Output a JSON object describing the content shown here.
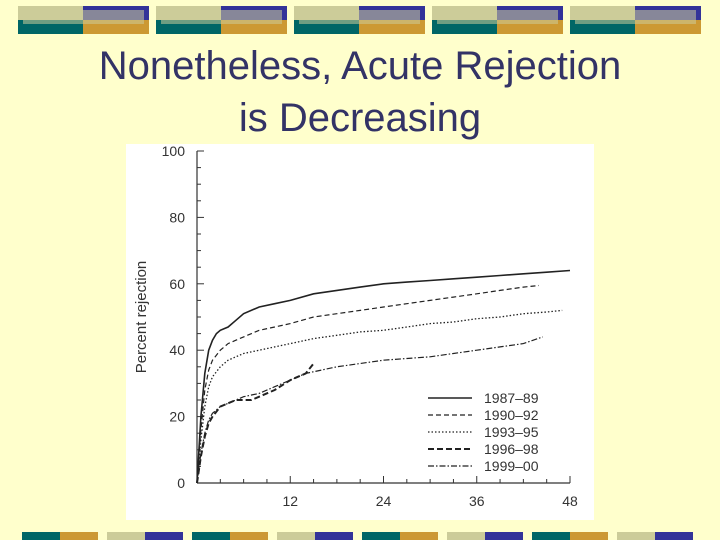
{
  "slide": {
    "title_line1": "Nonetheless, Acute Rejection",
    "title_line2": "is Decreasing"
  },
  "colors": {
    "background": "#FFFFCC",
    "title": "#333366",
    "bar_navy": "#333399",
    "bar_gold": "#CC9933",
    "bar_teal": "#006666",
    "bar_lightgreen": "#CCCC99"
  },
  "chart_data": {
    "type": "line",
    "title": "",
    "xlabel": "",
    "ylabel": "Percent rejection",
    "xlim": [
      0,
      48
    ],
    "ylim": [
      0,
      100
    ],
    "xticks": [
      12,
      24,
      36,
      48
    ],
    "yticks": [
      0,
      20,
      40,
      60,
      80,
      100
    ],
    "grid": false,
    "legend_position": "bottom-right",
    "series": [
      {
        "name": "1987–89",
        "style": "solid",
        "x": [
          0,
          0.5,
          1,
          1.5,
          2,
          2.5,
          3,
          4,
          5,
          6,
          8,
          10,
          12,
          15,
          18,
          21,
          24,
          27,
          30,
          33,
          36,
          39,
          42,
          45,
          48
        ],
        "y": [
          0,
          20,
          33,
          40,
          43,
          45,
          46,
          47,
          49,
          51,
          53,
          54,
          55,
          57,
          58,
          59,
          60,
          60.5,
          61,
          61.5,
          62,
          62.5,
          63,
          63.5,
          64
        ]
      },
      {
        "name": "1990–92",
        "style": "dashed",
        "x": [
          0,
          0.5,
          1,
          1.5,
          2,
          3,
          4,
          5,
          6,
          8,
          10,
          12,
          15,
          18,
          21,
          24,
          27,
          30,
          33,
          36,
          39,
          42,
          44
        ],
        "y": [
          0,
          16,
          28,
          34,
          37,
          40,
          42,
          43,
          44,
          46,
          47,
          48,
          50,
          51,
          52,
          53,
          54,
          55,
          56,
          57,
          58,
          59,
          59.5
        ]
      },
      {
        "name": "1993–95",
        "style": "dotted",
        "x": [
          0,
          0.5,
          1,
          1.5,
          2,
          3,
          4,
          5,
          6,
          8,
          10,
          12,
          15,
          18,
          21,
          24,
          27,
          30,
          33,
          36,
          39,
          42,
          45,
          47
        ],
        "y": [
          0,
          13,
          23,
          29,
          32,
          35,
          37,
          38,
          39,
          40,
          41,
          42,
          43.5,
          44.5,
          45.5,
          46,
          47,
          48,
          48.5,
          49.5,
          50,
          51,
          51.5,
          52
        ]
      },
      {
        "name": "1996–98",
        "style": "dashed-bold",
        "x": [
          0,
          0.5,
          1,
          1.5,
          2,
          3,
          4,
          5,
          6,
          7,
          8,
          10,
          12,
          14,
          15
        ],
        "y": [
          0,
          8,
          14,
          18,
          20,
          23,
          24,
          25,
          25,
          25,
          26,
          28,
          31,
          33,
          36
        ]
      },
      {
        "name": "1999–00",
        "style": "dash-dot",
        "x": [
          0,
          0.5,
          1,
          1.5,
          2,
          3,
          4,
          6,
          8,
          10,
          12,
          14,
          16,
          18,
          21,
          24,
          27,
          30,
          33,
          36,
          39,
          42,
          44.5
        ],
        "y": [
          0,
          9,
          15,
          19,
          21,
          23,
          24,
          26,
          27,
          29,
          31,
          33,
          34,
          35,
          36,
          37,
          37.5,
          38,
          39,
          40,
          41,
          42,
          44
        ]
      }
    ]
  }
}
